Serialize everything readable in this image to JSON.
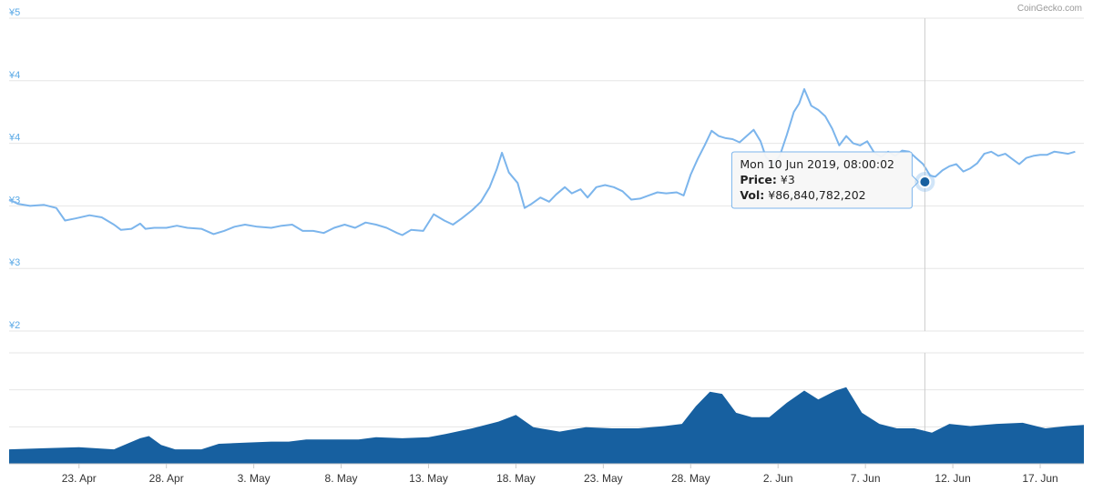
{
  "credit": "CoinGecko.com",
  "colors": {
    "price_line": "#7cb5ec",
    "volume_fill": "#1760a0",
    "grid": "#e6e6e6",
    "axis_label": "#5aa9e6",
    "tooltip_border": "#7cb5ec",
    "marker": "#1760a0"
  },
  "chart_data": [
    {
      "type": "line",
      "name": "Price",
      "y_tick_labels": [
        "¥5",
        "¥4",
        "¥4",
        "¥3",
        "¥3",
        "¥2"
      ],
      "ylim": [
        2.0,
        5.0
      ],
      "grid": true,
      "x_tick_labels": [
        "23. Apr",
        "28. Apr",
        "3. May",
        "8. May",
        "13. May",
        "18. May",
        "23. May",
        "28. May",
        "2. Jun",
        "7. Jun",
        "12. Jun",
        "17. Jun"
      ],
      "x_tick_days": [
        4,
        9,
        14,
        19,
        24,
        29,
        34,
        39,
        44,
        49,
        54,
        59
      ],
      "xlim_days": [
        0,
        61.5
      ],
      "x_origin_date": "19 Apr 2019",
      "points": [
        [
          0.0,
          3.26
        ],
        [
          0.5,
          3.22
        ],
        [
          1.2,
          3.2
        ],
        [
          2.0,
          3.21
        ],
        [
          2.7,
          3.18
        ],
        [
          3.2,
          3.06
        ],
        [
          3.8,
          3.08
        ],
        [
          4.6,
          3.11
        ],
        [
          5.3,
          3.09
        ],
        [
          6.0,
          3.02
        ],
        [
          6.4,
          2.97
        ],
        [
          7.0,
          2.98
        ],
        [
          7.5,
          3.03
        ],
        [
          7.8,
          2.98
        ],
        [
          8.3,
          2.99
        ],
        [
          9.0,
          2.99
        ],
        [
          9.6,
          3.01
        ],
        [
          10.2,
          2.99
        ],
        [
          11.0,
          2.98
        ],
        [
          11.7,
          2.93
        ],
        [
          12.3,
          2.96
        ],
        [
          12.9,
          3.0
        ],
        [
          13.5,
          3.02
        ],
        [
          14.2,
          3.0
        ],
        [
          15.0,
          2.99
        ],
        [
          15.6,
          3.01
        ],
        [
          16.2,
          3.02
        ],
        [
          16.8,
          2.96
        ],
        [
          17.4,
          2.96
        ],
        [
          18.0,
          2.94
        ],
        [
          18.6,
          2.99
        ],
        [
          19.2,
          3.02
        ],
        [
          19.8,
          2.99
        ],
        [
          20.4,
          3.04
        ],
        [
          21.0,
          3.02
        ],
        [
          21.6,
          2.99
        ],
        [
          22.2,
          2.94
        ],
        [
          22.5,
          2.92
        ],
        [
          23.0,
          2.97
        ],
        [
          23.7,
          2.96
        ],
        [
          24.3,
          3.12
        ],
        [
          24.9,
          3.06
        ],
        [
          25.4,
          3.02
        ],
        [
          25.9,
          3.08
        ],
        [
          26.5,
          3.16
        ],
        [
          27.0,
          3.24
        ],
        [
          27.5,
          3.38
        ],
        [
          27.9,
          3.55
        ],
        [
          28.2,
          3.71
        ],
        [
          28.6,
          3.52
        ],
        [
          29.1,
          3.42
        ],
        [
          29.5,
          3.18
        ],
        [
          29.9,
          3.22
        ],
        [
          30.4,
          3.28
        ],
        [
          30.9,
          3.24
        ],
        [
          31.3,
          3.31
        ],
        [
          31.8,
          3.38
        ],
        [
          32.2,
          3.32
        ],
        [
          32.7,
          3.36
        ],
        [
          33.1,
          3.28
        ],
        [
          33.6,
          3.38
        ],
        [
          34.1,
          3.4
        ],
        [
          34.6,
          3.38
        ],
        [
          35.1,
          3.34
        ],
        [
          35.6,
          3.26
        ],
        [
          36.1,
          3.27
        ],
        [
          36.6,
          3.3
        ],
        [
          37.1,
          3.33
        ],
        [
          37.6,
          3.32
        ],
        [
          38.2,
          3.33
        ],
        [
          38.6,
          3.3
        ],
        [
          39.0,
          3.5
        ],
        [
          39.4,
          3.65
        ],
        [
          39.8,
          3.78
        ],
        [
          40.2,
          3.92
        ],
        [
          40.6,
          3.87
        ],
        [
          41.0,
          3.85
        ],
        [
          41.4,
          3.84
        ],
        [
          41.8,
          3.81
        ],
        [
          42.2,
          3.87
        ],
        [
          42.6,
          3.93
        ],
        [
          43.0,
          3.82
        ],
        [
          43.3,
          3.67
        ],
        [
          43.7,
          3.6
        ],
        [
          44.1,
          3.68
        ],
        [
          44.5,
          3.88
        ],
        [
          44.9,
          4.1
        ],
        [
          45.2,
          4.18
        ],
        [
          45.5,
          4.32
        ],
        [
          45.9,
          4.16
        ],
        [
          46.3,
          4.12
        ],
        [
          46.7,
          4.06
        ],
        [
          47.1,
          3.94
        ],
        [
          47.5,
          3.78
        ],
        [
          47.9,
          3.87
        ],
        [
          48.3,
          3.8
        ],
        [
          48.7,
          3.78
        ],
        [
          49.1,
          3.82
        ],
        [
          49.5,
          3.71
        ],
        [
          49.9,
          3.67
        ],
        [
          50.3,
          3.72
        ],
        [
          50.7,
          3.68
        ],
        [
          51.1,
          3.73
        ],
        [
          51.5,
          3.72
        ],
        [
          51.9,
          3.66
        ],
        [
          52.3,
          3.6
        ],
        [
          52.7,
          3.49
        ],
        [
          53.0,
          3.48
        ],
        [
          53.4,
          3.54
        ],
        [
          53.8,
          3.58
        ],
        [
          54.2,
          3.6
        ],
        [
          54.6,
          3.53
        ],
        [
          55.0,
          3.56
        ],
        [
          55.4,
          3.61
        ],
        [
          55.8,
          3.7
        ],
        [
          56.2,
          3.72
        ],
        [
          56.6,
          3.68
        ],
        [
          57.0,
          3.7
        ],
        [
          57.4,
          3.65
        ],
        [
          57.8,
          3.6
        ],
        [
          58.2,
          3.66
        ],
        [
          58.6,
          3.68
        ],
        [
          59.0,
          3.69
        ],
        [
          59.4,
          3.69
        ],
        [
          59.8,
          3.72
        ],
        [
          60.2,
          3.71
        ],
        [
          60.6,
          3.7
        ],
        [
          61.0,
          3.72
        ]
      ]
    },
    {
      "type": "area",
      "name": "Volume",
      "grid": true,
      "gridlines": 3,
      "relative_points": [
        [
          0.0,
          0.13
        ],
        [
          2.0,
          0.14
        ],
        [
          4.0,
          0.15
        ],
        [
          6.0,
          0.13
        ],
        [
          7.5,
          0.23
        ],
        [
          8.0,
          0.25
        ],
        [
          8.7,
          0.17
        ],
        [
          9.5,
          0.13
        ],
        [
          11.0,
          0.13
        ],
        [
          12.0,
          0.18
        ],
        [
          13.5,
          0.19
        ],
        [
          15.0,
          0.2
        ],
        [
          16.0,
          0.2
        ],
        [
          17.0,
          0.22
        ],
        [
          18.5,
          0.22
        ],
        [
          20.0,
          0.22
        ],
        [
          21.0,
          0.24
        ],
        [
          22.5,
          0.23
        ],
        [
          24.0,
          0.24
        ],
        [
          25.0,
          0.27
        ],
        [
          26.5,
          0.32
        ],
        [
          28.0,
          0.38
        ],
        [
          29.0,
          0.44
        ],
        [
          30.0,
          0.33
        ],
        [
          31.5,
          0.29
        ],
        [
          33.0,
          0.33
        ],
        [
          34.5,
          0.32
        ],
        [
          36.0,
          0.32
        ],
        [
          37.5,
          0.34
        ],
        [
          38.5,
          0.36
        ],
        [
          39.3,
          0.52
        ],
        [
          40.1,
          0.65
        ],
        [
          40.8,
          0.63
        ],
        [
          41.6,
          0.46
        ],
        [
          42.5,
          0.42
        ],
        [
          43.5,
          0.42
        ],
        [
          44.5,
          0.55
        ],
        [
          45.5,
          0.66
        ],
        [
          46.3,
          0.58
        ],
        [
          47.3,
          0.66
        ],
        [
          47.9,
          0.69
        ],
        [
          48.8,
          0.46
        ],
        [
          49.8,
          0.36
        ],
        [
          50.8,
          0.32
        ],
        [
          51.8,
          0.32
        ],
        [
          52.8,
          0.28
        ],
        [
          53.8,
          0.36
        ],
        [
          55.0,
          0.34
        ],
        [
          56.5,
          0.36
        ],
        [
          58.0,
          0.37
        ],
        [
          59.3,
          0.32
        ],
        [
          60.5,
          0.34
        ],
        [
          61.5,
          0.35
        ]
      ]
    }
  ],
  "tooltip": {
    "title": "Mon 10 Jun 2019, 08:00:02",
    "price_label": "Price:",
    "price_value": "¥3",
    "vol_label": "Vol:",
    "vol_value": "¥86,840,782,202",
    "hover_day": 52.4,
    "hover_price": 3.43
  }
}
